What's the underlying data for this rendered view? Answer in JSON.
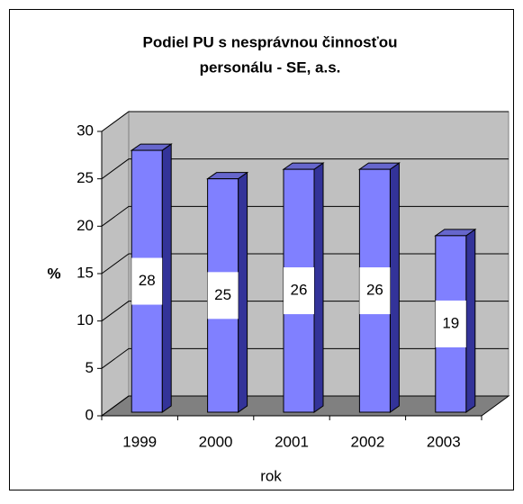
{
  "chart_data": {
    "type": "bar3d",
    "title": "Podiel PU s nesprávnou činnosťou",
    "subtitle": "personálu - SE, a.s.",
    "x_label": "rok",
    "y_label": "%",
    "categories": [
      "1999",
      "2000",
      "2001",
      "2002",
      "2003"
    ],
    "values": [
      28,
      25,
      26,
      26,
      19
    ],
    "color": "#8080ff",
    "ylim": [
      0,
      30
    ],
    "yticks": [
      0,
      5,
      10,
      15,
      20,
      25,
      30
    ],
    "grid": true
  }
}
